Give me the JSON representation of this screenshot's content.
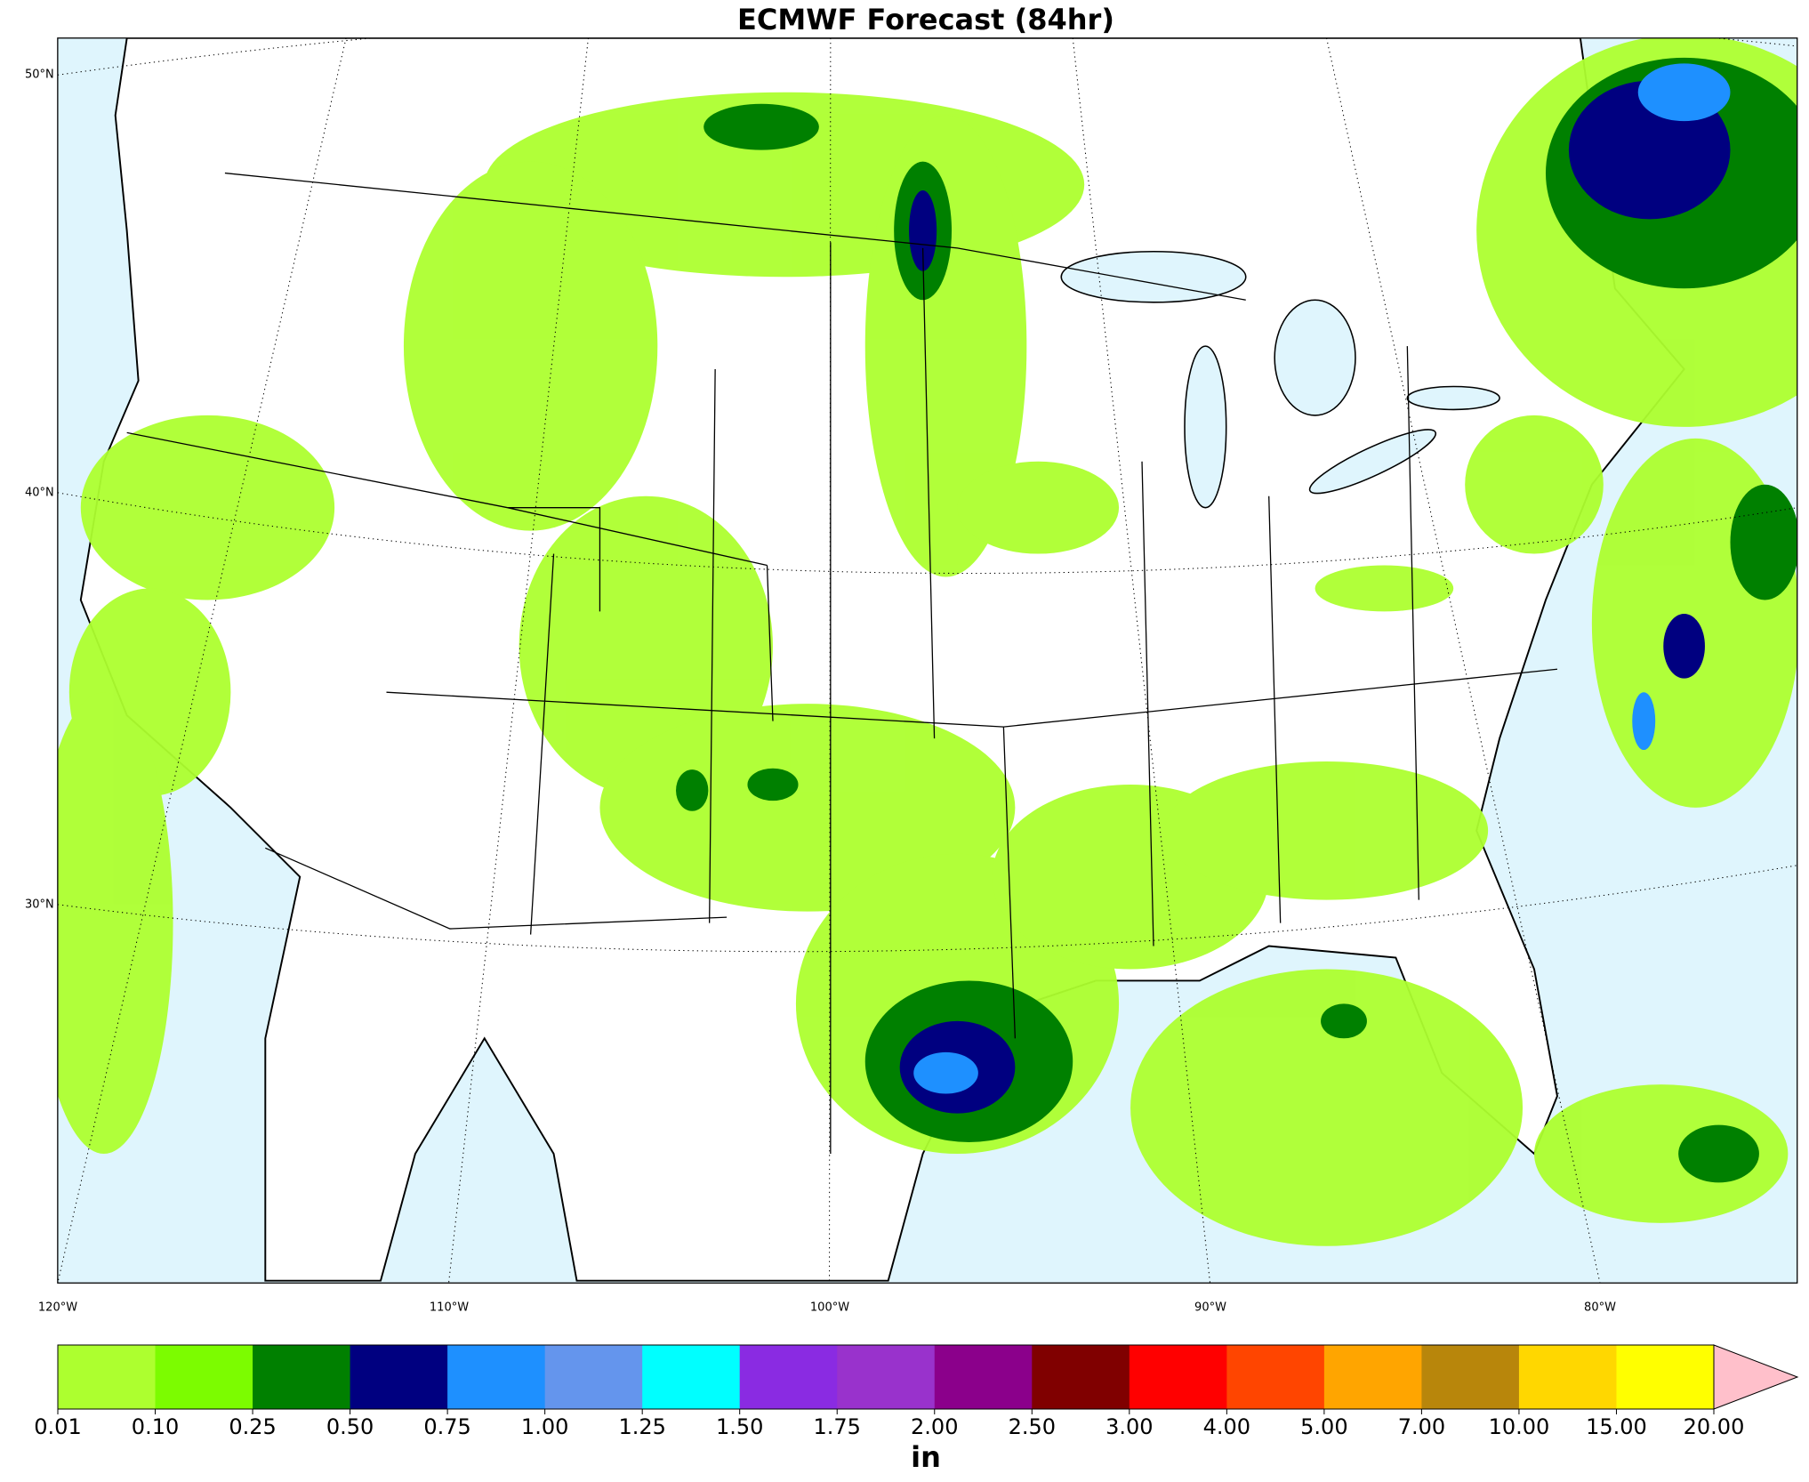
{
  "header": {
    "title": "ECMWF Forecast (84hr)"
  },
  "map": {
    "lat_labels": [
      "50°N",
      "40°N",
      "30°N"
    ],
    "lon_labels": [
      "120°W",
      "110°W",
      "100°W",
      "90°W",
      "80°W"
    ]
  },
  "colorbar": {
    "ticks": [
      "0.01",
      "0.10",
      "0.25",
      "0.50",
      "0.75",
      "1.00",
      "1.25",
      "1.50",
      "1.75",
      "2.00",
      "2.50",
      "3.00",
      "4.00",
      "5.00",
      "7.00",
      "10.00",
      "15.00",
      "20.00"
    ],
    "colors": [
      "#adff2f",
      "#7cfc00",
      "#008000",
      "#000080",
      "#1e90ff",
      "#6495ed",
      "#00ffff",
      "#8a2be2",
      "#9932cc",
      "#8b008b",
      "#800000",
      "#ff0000",
      "#ff4500",
      "#ffa500",
      "#b8860b",
      "#ffd700",
      "#ffff00"
    ],
    "extend_color": "#ffc0cb",
    "unit": "in"
  }
}
